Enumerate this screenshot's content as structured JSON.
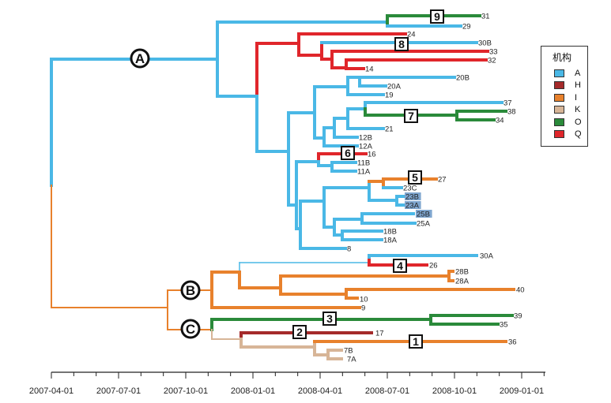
{
  "legend": {
    "title": "机构",
    "items": [
      {
        "label": "A",
        "color": "#4ab8e6"
      },
      {
        "label": "H",
        "color": "#a52a2a"
      },
      {
        "label": "I",
        "color": "#e8812c"
      },
      {
        "label": "K",
        "color": "#d7b597"
      },
      {
        "label": "O",
        "color": "#2a8a3a"
      },
      {
        "label": "Q",
        "color": "#e0262b"
      }
    ]
  },
  "axis": {
    "ticks": [
      "2007-04-01",
      "2007-07-01",
      "2007-10-01",
      "2008-01-01",
      "2008-04-01",
      "2008-07-01",
      "2008-10-01",
      "2009-01-01"
    ]
  },
  "clade_labels": [
    "A",
    "B",
    "C"
  ],
  "event_labels": [
    "1",
    "2",
    "3",
    "4",
    "5",
    "6",
    "7",
    "8",
    "9"
  ],
  "tips": [
    "31",
    "29",
    "24",
    "30B",
    "33",
    "32",
    "14",
    "20B",
    "20A",
    "19",
    "37",
    "38",
    "34",
    "21",
    "12B",
    "12A",
    "16",
    "11B",
    "11A",
    "27",
    "23C",
    "23B",
    "23A",
    "25B",
    "25A",
    "18B",
    "18A",
    "8",
    "30A",
    "26",
    "28B",
    "28A",
    "40",
    "10",
    "9",
    "39",
    "35",
    "17",
    "36",
    "7B",
    "7A"
  ],
  "highlighted_tips": [
    "23B",
    "23A",
    "25B"
  ]
}
